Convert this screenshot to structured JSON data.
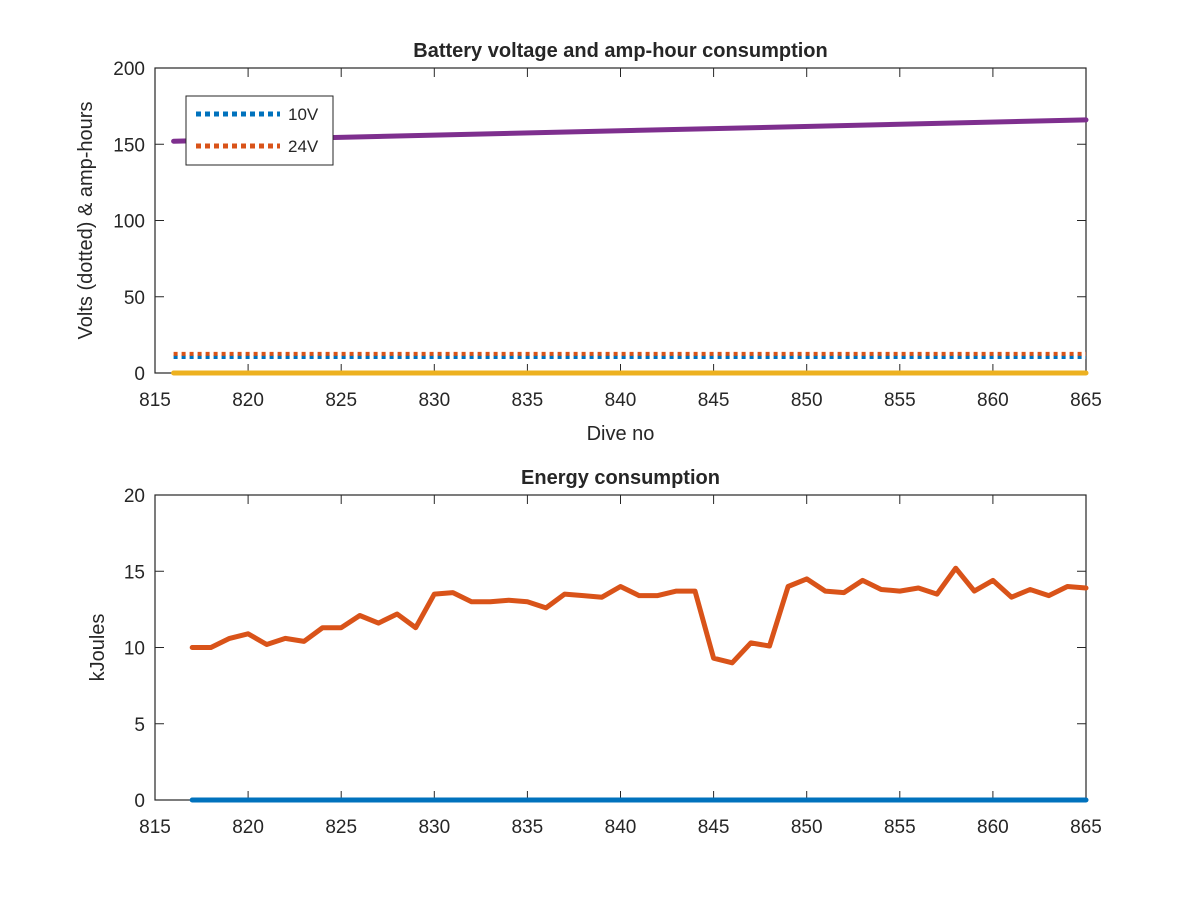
{
  "chart_data": [
    {
      "type": "line",
      "title": "Battery voltage and amp-hour consumption",
      "xlabel": "Dive no",
      "ylabel": "Volts (dotted) & amp-hours",
      "xlim": [
        815,
        865
      ],
      "ylim": [
        0,
        200
      ],
      "xticks": [
        815,
        820,
        825,
        830,
        835,
        840,
        845,
        850,
        855,
        860,
        865
      ],
      "yticks": [
        0,
        50,
        100,
        150,
        200
      ],
      "grid": false,
      "legend": {
        "placement": "top-left"
      },
      "series": [
        {
          "name": "10V",
          "style": "dotted",
          "color": "#0072BD",
          "x": [
            816,
            865
          ],
          "y": [
            10.5,
            10.5
          ]
        },
        {
          "name": "24V",
          "style": "dotted",
          "color": "#D95319",
          "x": [
            816,
            865
          ],
          "y": [
            12.5,
            12.5
          ]
        },
        {
          "style": "solid",
          "color": "#7E2F8E",
          "x": [
            816,
            865
          ],
          "y": [
            152,
            166
          ]
        },
        {
          "style": "solid",
          "color": "#EDB120",
          "x": [
            816,
            865
          ],
          "y": [
            0,
            0
          ]
        }
      ]
    },
    {
      "type": "line",
      "title": "Energy consumption",
      "xlabel": "",
      "ylabel": "kJoules",
      "xlim": [
        815,
        865
      ],
      "ylim": [
        0,
        20
      ],
      "xticks": [
        815,
        820,
        825,
        830,
        835,
        840,
        845,
        850,
        855,
        860,
        865
      ],
      "yticks": [
        0,
        5,
        10,
        15,
        20
      ],
      "grid": false,
      "series": [
        {
          "style": "solid",
          "color": "#0072BD",
          "x": [
            817,
            865
          ],
          "y": [
            0,
            0
          ]
        },
        {
          "style": "solid",
          "color": "#D95319",
          "x": [
            817,
            818,
            819,
            820,
            821,
            822,
            823,
            824,
            825,
            826,
            827,
            828,
            829,
            830,
            831,
            832,
            833,
            834,
            835,
            836,
            837,
            838,
            839,
            840,
            841,
            842,
            843,
            844,
            845,
            846,
            847,
            848,
            849,
            850,
            851,
            852,
            853,
            854,
            855,
            856,
            857,
            858,
            859,
            860,
            861,
            862,
            863,
            864,
            865
          ],
          "y": [
            10.0,
            10.0,
            10.6,
            10.9,
            10.2,
            10.6,
            10.4,
            11.3,
            11.3,
            12.1,
            11.6,
            12.2,
            11.3,
            13.5,
            13.6,
            13.0,
            13.0,
            13.1,
            13.0,
            12.6,
            13.5,
            13.4,
            13.3,
            14.0,
            13.4,
            13.4,
            13.7,
            13.7,
            9.3,
            9.0,
            10.3,
            10.1,
            14.0,
            14.5,
            13.7,
            13.6,
            14.4,
            13.8,
            13.7,
            13.9,
            13.5,
            15.2,
            13.7,
            14.4,
            13.3,
            13.8,
            13.4,
            14.0,
            13.9
          ]
        }
      ]
    }
  ]
}
